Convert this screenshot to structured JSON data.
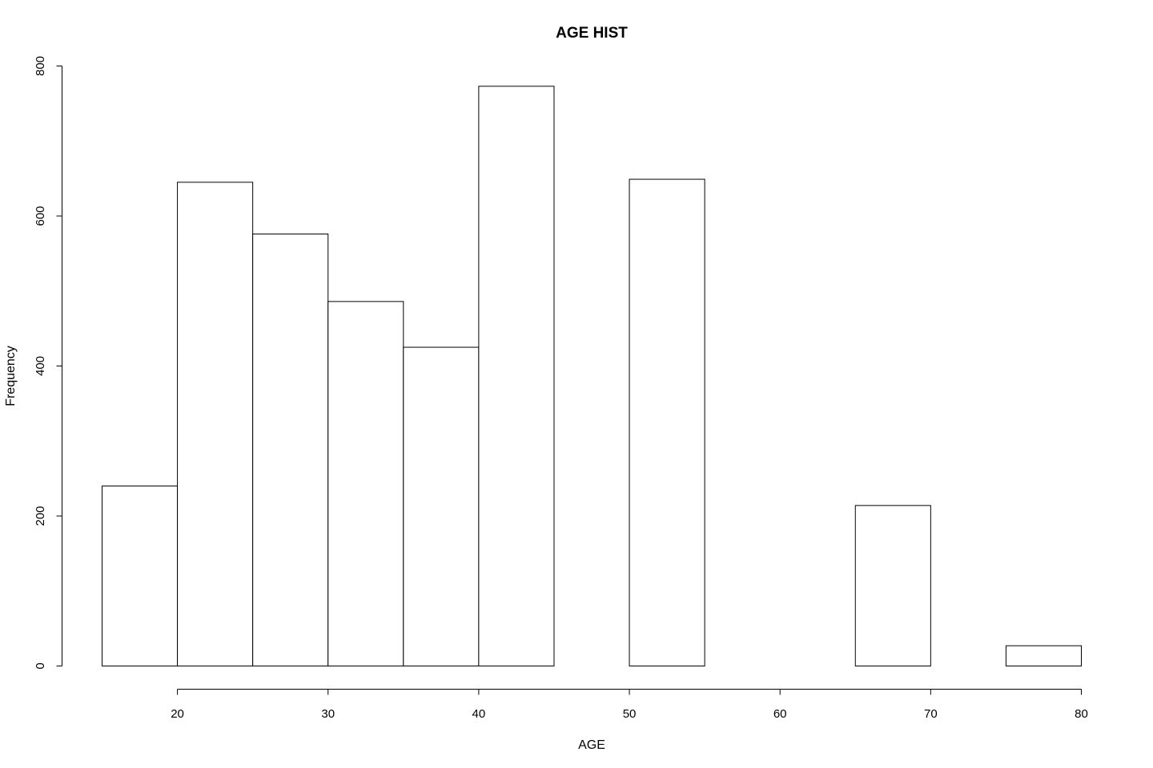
{
  "chart_data": {
    "type": "bar",
    "title": "AGE HIST",
    "xlabel": "AGE",
    "ylabel": "Frequency",
    "bins": [
      {
        "start": 15,
        "end": 20,
        "count": 240
      },
      {
        "start": 20,
        "end": 25,
        "count": 645
      },
      {
        "start": 25,
        "end": 30,
        "count": 576
      },
      {
        "start": 30,
        "end": 35,
        "count": 486
      },
      {
        "start": 35,
        "end": 40,
        "count": 425
      },
      {
        "start": 40,
        "end": 45,
        "count": 773
      },
      {
        "start": 45,
        "end": 50,
        "count": 0
      },
      {
        "start": 50,
        "end": 55,
        "count": 649
      },
      {
        "start": 55,
        "end": 60,
        "count": 0
      },
      {
        "start": 60,
        "end": 65,
        "count": 0
      },
      {
        "start": 65,
        "end": 70,
        "count": 214
      },
      {
        "start": 70,
        "end": 75,
        "count": 0
      },
      {
        "start": 75,
        "end": 80,
        "count": 27
      }
    ],
    "xlim": [
      15,
      80
    ],
    "ylim": [
      0,
      800
    ],
    "xticks": [
      20,
      30,
      40,
      50,
      60,
      70,
      80
    ],
    "yticks": [
      0,
      200,
      400,
      600,
      800
    ],
    "grid": false,
    "legend": "none"
  }
}
